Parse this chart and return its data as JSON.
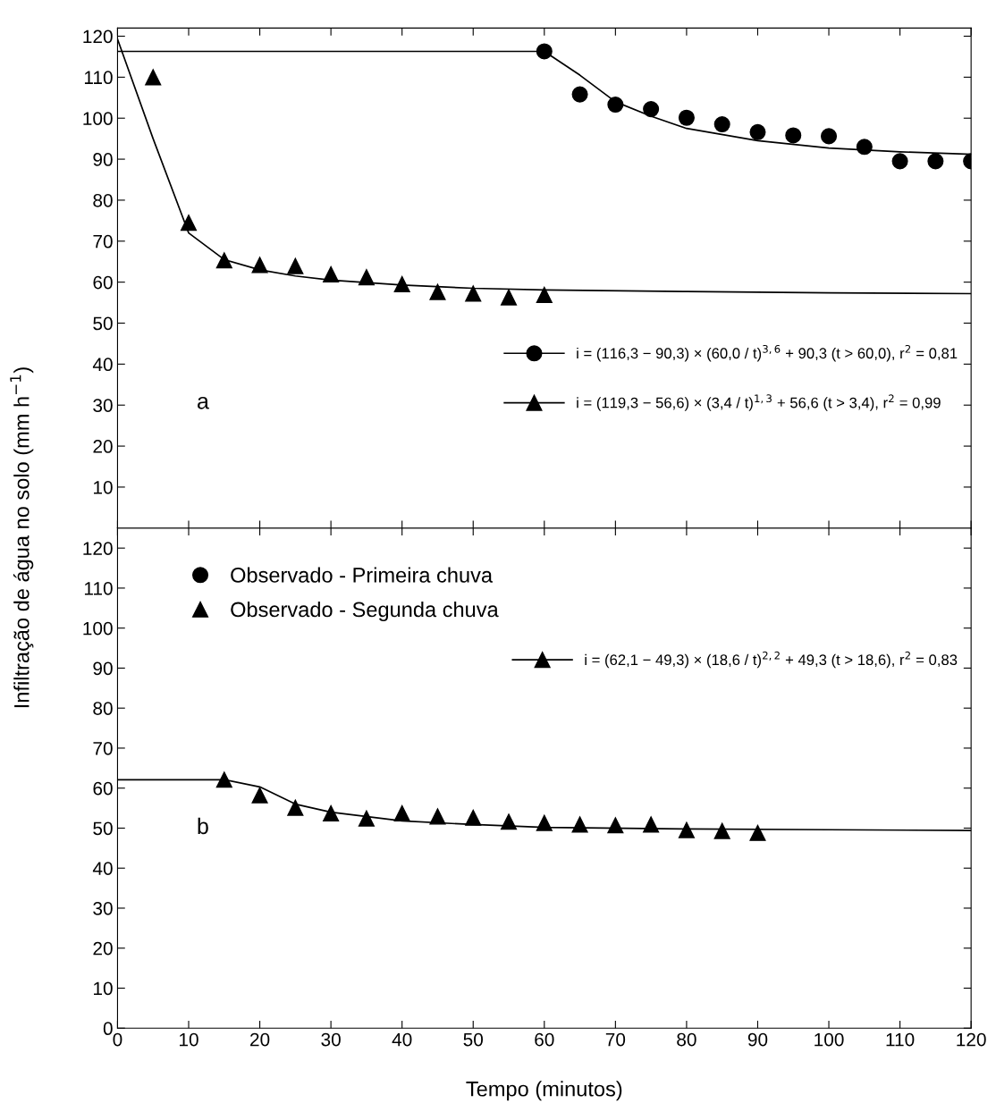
{
  "chart_data": [
    {
      "type": "scatter",
      "ylabel": "Infiltração de água no solo (mm h$^{−1}$)",
      "xlim": [
        0,
        120
      ],
      "ylim": [
        0,
        122
      ],
      "xticks": [
        0,
        10,
        20,
        30,
        40,
        50,
        60,
        70,
        80,
        90,
        100,
        110,
        120
      ],
      "yticks": [
        10,
        20,
        30,
        40,
        50,
        60,
        70,
        80,
        90,
        100,
        110,
        120
      ],
      "tick_labels": "y",
      "grid": false,
      "legend": "bottom",
      "annotations": [
        "a"
      ],
      "series": [
        {
          "type": "line",
          "name": "i = (116,3 − 90,3) × (60,0 / t)$^{3,6}$ + 90,3 (t > 60,0), r$^{2}$ = 0,81",
          "color": "#000000",
          "x": [
            0,
            60,
            65,
            70,
            75,
            80,
            90,
            100,
            110,
            120
          ],
          "values": [
            116.3,
            116.3,
            110.5,
            104,
            100.5,
            97.5,
            94.5,
            92.7,
            91.8,
            91.2
          ]
        },
        {
          "type": "line",
          "name": "i = (119,3 − 56,6) × (3,4 / t)$^{1,3}$ + 56,6 (t > 3,4), r$^{2}$ = 0,99",
          "color": "#000000",
          "x": [
            0,
            5,
            10,
            15,
            20,
            25,
            30,
            40,
            50,
            60,
            80,
            100,
            120
          ],
          "values": [
            119.3,
            95,
            72,
            65.5,
            63,
            61.5,
            60.5,
            59.3,
            58.5,
            58.1,
            57.7,
            57.4,
            57.2
          ]
        },
        {
          "name": "Observado - Primeira chuva",
          "marker": "circle",
          "color": "#000000",
          "x": [
            60,
            65,
            70,
            75,
            80,
            85,
            90,
            95,
            100,
            105,
            110,
            115,
            120
          ],
          "values": [
            116.3,
            105.8,
            103.3,
            102.2,
            100.1,
            98.5,
            96.6,
            95.8,
            95.6,
            93.0,
            89.5,
            89.5,
            89.5
          ]
        },
        {
          "name": "Observado - Segunda chuva",
          "marker": "triangle",
          "color": "#000000",
          "x": [
            5,
            10,
            15,
            20,
            25,
            30,
            35,
            40,
            45,
            50,
            55,
            60
          ],
          "values": [
            110,
            74.5,
            65.3,
            64.2,
            63.9,
            61.9,
            61.2,
            59.5,
            57.6,
            57.2,
            56.3,
            56.9
          ]
        }
      ]
    },
    {
      "type": "scatter",
      "xlabel": "Tempo (minutos)",
      "xlim": [
        0,
        120
      ],
      "ylim": [
        0,
        125
      ],
      "xticks": [
        0,
        10,
        20,
        30,
        40,
        50,
        60,
        70,
        80,
        90,
        100,
        110,
        120
      ],
      "yticks": [
        0,
        10,
        20,
        30,
        40,
        50,
        60,
        70,
        80,
        90,
        100,
        110,
        120
      ],
      "grid": false,
      "legend": "top right",
      "annotations": [
        "b"
      ],
      "series": [
        {
          "marker": "triangle",
          "color": "#000000",
          "x": [
            15,
            20,
            25,
            30,
            35,
            40,
            45,
            50,
            55,
            60,
            65,
            70,
            75,
            80,
            85,
            90
          ],
          "values": [
            62.1,
            58.2,
            55.1,
            53.7,
            52.4,
            53.7,
            52.9,
            52.6,
            51.6,
            51.3,
            50.9,
            50.7,
            50.9,
            49.5,
            49.3,
            48.8
          ]
        },
        {
          "type": "line",
          "name": "i = (62,1 − 49,3) × (18,6 / t)$^{2,2}$ + 49,3 (t > 18,6), r$^{2}$ = 0,83",
          "color": "#000000",
          "x": [
            0,
            15,
            20,
            25,
            30,
            40,
            50,
            60,
            80,
            100,
            120
          ],
          "values": [
            62.1,
            62.1,
            60.3,
            56,
            54,
            51.8,
            50.9,
            50.2,
            49.8,
            49.6,
            49.4
          ]
        }
      ]
    }
  ]
}
